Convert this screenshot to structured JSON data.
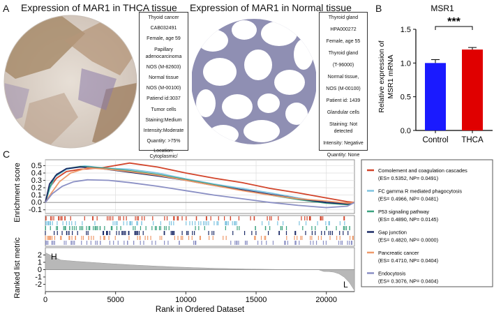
{
  "panel_a": {
    "label": "A",
    "thca": {
      "title": "Expression of MAR1 in THCA tissue",
      "info": [
        "Thyoid cancer",
        "CAB032491",
        "Female, age 59",
        "Papillary",
        "adenocarcinoma",
        "NOS (M-82603)",
        "Normal tissue",
        "NOS (M-00100)",
        "Patiend id:3037",
        "Tumor cells",
        "Staining:Medium",
        "Intensity:Moderate",
        "Quantity: >75%",
        "Location: Cytoplasmic/ membranous"
      ]
    },
    "normal": {
      "title": "Expression of MAR1 in Normal tissue",
      "info": [
        "Thyroid gland",
        "HPA000272",
        "Female, age 55",
        "Thyroid gland",
        "(T-96000)",
        "Normal tissue,",
        "NOS (M-00100)",
        "Patient id: 1439",
        "Glandular cells",
        "Staining: Not detected",
        "Intensity: Negative",
        "Quantity: None"
      ]
    }
  },
  "panel_b": {
    "label": "B"
  },
  "panel_c": {
    "label": "C"
  },
  "colors": {
    "control": "#1a1aff",
    "thca": "#e00000",
    "complement": "#d2442a",
    "fc": "#7ec3e0",
    "p53": "#3aa27e",
    "gap": "#1b2a66",
    "pancreatic": "#ef9a6a",
    "endocytosis": "#8a8fc4"
  },
  "chart_data": [
    {
      "type": "bar",
      "title": "MSR1",
      "categories": [
        "Control",
        "THCA"
      ],
      "values": [
        1.0,
        1.2
      ],
      "errors": [
        0.05,
        0.03
      ],
      "ylabel": "Relative expression of MSR1 mRNA",
      "ylim": [
        0,
        1.5
      ],
      "yticks": [
        "0.0",
        "0.5",
        "1.0",
        "1.5"
      ],
      "significance": "***"
    },
    {
      "type": "line",
      "title": "",
      "xlabel": "Rank in Ordered Dataset",
      "ylabel_top": "Enrichment score",
      "ylabel_bottom": "Ranked list metric",
      "xlim": [
        0,
        22000
      ],
      "xticks": [
        "0",
        "5000",
        "10000",
        "15000",
        "20000"
      ],
      "es_yticks": [
        "0.5",
        "0.4",
        "0.3",
        "0.2",
        "0.1",
        "0.0",
        "-0.1"
      ],
      "metric_yticks": [
        "2",
        "1",
        "0",
        "-1",
        "-2"
      ],
      "metric_ylim": [
        -3,
        3
      ],
      "annotations": [
        "H",
        "L"
      ],
      "series": [
        {
          "name": "Comolement and coagulation cascades",
          "stats": "(ES= 0.5352, NP= 0.0491)",
          "color_key": "complement",
          "x": [
            0,
            300,
            800,
            1500,
            2500,
            4000,
            6000,
            8000,
            10000,
            12000,
            14000,
            16000,
            18000,
            20000,
            21500,
            22000
          ],
          "y": [
            0,
            0.2,
            0.33,
            0.42,
            0.45,
            0.47,
            0.535,
            0.48,
            0.4,
            0.33,
            0.27,
            0.19,
            0.13,
            0.06,
            0.01,
            0
          ]
        },
        {
          "name": "FC gamma R mediated phagocytosis",
          "stats": "(ES= 0.4966, NP= 0.0481)",
          "color_key": "fc",
          "x": [
            0,
            300,
            700,
            1500,
            2800,
            4000,
            6000,
            8000,
            10000,
            12000,
            14000,
            16000,
            18000,
            20000,
            21500,
            22000
          ],
          "y": [
            0,
            0.18,
            0.35,
            0.45,
            0.497,
            0.47,
            0.45,
            0.4,
            0.32,
            0.25,
            0.19,
            0.13,
            0.06,
            0.0,
            -0.02,
            0
          ]
        },
        {
          "name": "P53 signaling pathway",
          "stats": "(ES= 0.4890, NP= 0.0145)",
          "color_key": "p53",
          "x": [
            0,
            300,
            700,
            1500,
            2500,
            4000,
            6000,
            8000,
            10000,
            12000,
            14000,
            16000,
            18000,
            20000,
            21500,
            22000
          ],
          "y": [
            0,
            0.2,
            0.36,
            0.46,
            0.489,
            0.47,
            0.43,
            0.38,
            0.31,
            0.24,
            0.17,
            0.1,
            0.04,
            -0.01,
            -0.03,
            0
          ]
        },
        {
          "name": "Gap junction",
          "stats": "(ES= 0.4820, NP= 0.0000)",
          "color_key": "gap",
          "x": [
            0,
            300,
            800,
            1500,
            2500,
            4000,
            6000,
            8000,
            10000,
            12000,
            14000,
            16000,
            18000,
            20000,
            21500,
            22000
          ],
          "y": [
            0,
            0.25,
            0.38,
            0.46,
            0.482,
            0.46,
            0.41,
            0.36,
            0.3,
            0.23,
            0.17,
            0.11,
            0.05,
            0.0,
            -0.02,
            0
          ]
        },
        {
          "name": "Pancreatic cancer",
          "stats": "(ES= 0.4710, NP= 0.0404)",
          "color_key": "pancreatic",
          "x": [
            0,
            400,
            1000,
            1800,
            3000,
            4500,
            6000,
            8000,
            10000,
            12000,
            14000,
            16000,
            18000,
            20000,
            21500,
            22000
          ],
          "y": [
            0,
            0.12,
            0.28,
            0.4,
            0.47,
            0.45,
            0.42,
            0.37,
            0.3,
            0.23,
            0.16,
            0.1,
            0.05,
            0.02,
            -0.01,
            0
          ]
        },
        {
          "name": "Endocytosis",
          "stats": "(ES= 0.3076, NP= 0.0404)",
          "color_key": "endocytosis",
          "x": [
            0,
            500,
            1200,
            2000,
            3000,
            4500,
            6000,
            8000,
            10000,
            12000,
            14000,
            16000,
            18000,
            20000,
            21500,
            22000
          ],
          "y": [
            0,
            0.12,
            0.22,
            0.28,
            0.3076,
            0.3,
            0.27,
            0.22,
            0.16,
            0.1,
            0.05,
            0.0,
            -0.04,
            -0.07,
            -0.05,
            0
          ]
        }
      ]
    }
  ]
}
